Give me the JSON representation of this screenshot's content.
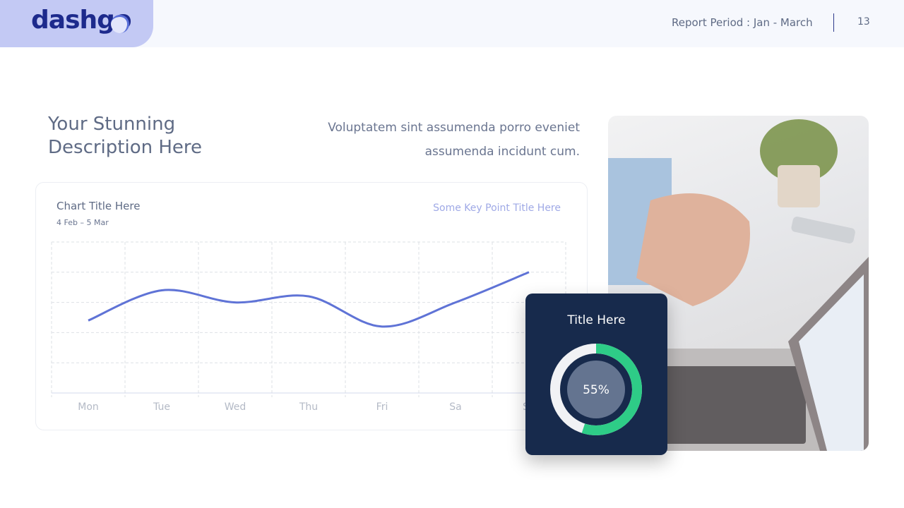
{
  "header": {
    "logo": "dashgo",
    "report_period": "Report Period : Jan - March",
    "page_number": "13"
  },
  "headline": [
    "Your Stunning",
    "Description Here"
  ],
  "description": [
    "Voluptatem sint assumenda porro eveniet",
    "assumenda incidunt cum."
  ],
  "chart_card": {
    "title": "Chart Title Here",
    "date_range": "4 Feb – 5 Mar",
    "key_point": "Some Key Point Title Here"
  },
  "chart_data": {
    "type": "line",
    "categories": [
      "Mon",
      "Tue",
      "Wed",
      "Thu",
      "Fri",
      "Sa",
      "Su"
    ],
    "values": [
      2.4,
      3.4,
      3.0,
      3.2,
      2.2,
      3.0,
      4.0
    ],
    "ylim": [
      0,
      5
    ],
    "grid": true,
    "color": "#5f73d6"
  },
  "overlay_card": {
    "title": "Title Here",
    "percent_label": "55%",
    "percent": 55,
    "progress_color": "#2ecc87",
    "background": "#172a4c"
  }
}
